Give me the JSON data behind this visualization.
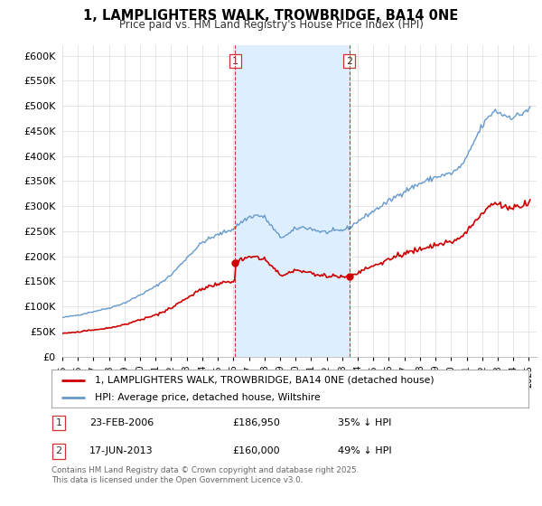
{
  "title": "1, LAMPLIGHTERS WALK, TROWBRIDGE, BA14 0NE",
  "subtitle": "Price paid vs. HM Land Registry's House Price Index (HPI)",
  "legend_line1": "1, LAMPLIGHTERS WALK, TROWBRIDGE, BA14 0NE (detached house)",
  "legend_line2": "HPI: Average price, detached house, Wiltshire",
  "footnote": "Contains HM Land Registry data © Crown copyright and database right 2025.\nThis data is licensed under the Open Government Licence v3.0.",
  "transaction1_label": "1",
  "transaction1_date": "23-FEB-2006",
  "transaction1_price": "£186,950",
  "transaction1_hpi": "35% ↓ HPI",
  "transaction2_label": "2",
  "transaction2_date": "17-JUN-2013",
  "transaction2_price": "£160,000",
  "transaction2_hpi": "49% ↓ HPI",
  "vline1_x": 2006.12,
  "vline2_x": 2013.46,
  "marker1_x": 2006.12,
  "marker1_y": 186950,
  "marker2_x": 2013.46,
  "marker2_y": 160000,
  "price_color": "#cc0000",
  "hpi_color": "#6699cc",
  "hpi_fill_color": "#ddeeff",
  "vline_color": "#cc3333",
  "background_color": "#ffffff",
  "ylim": [
    0,
    620000
  ],
  "xlim_start": 1995.0,
  "xlim_end": 2025.5,
  "yticks": [
    0,
    50000,
    100000,
    150000,
    200000,
    250000,
    300000,
    350000,
    400000,
    450000,
    500000,
    550000,
    600000
  ],
  "xticks": [
    1995,
    1996,
    1997,
    1998,
    1999,
    2000,
    2001,
    2002,
    2003,
    2004,
    2005,
    2006,
    2007,
    2008,
    2009,
    2010,
    2011,
    2012,
    2013,
    2014,
    2015,
    2016,
    2017,
    2018,
    2019,
    2020,
    2021,
    2022,
    2023,
    2024,
    2025
  ]
}
